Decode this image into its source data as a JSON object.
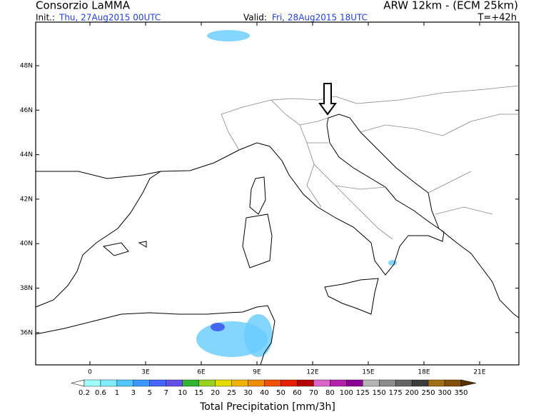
{
  "header": {
    "org": "Consorzio LaMMA",
    "model": "ARW 12km - (ECM 25km)",
    "init_label": "Init.:",
    "init_value": "Thu, 27Aug2015 00UTC",
    "valid_label": "Valid:",
    "valid_value": "Fri, 28Aug2015 18UTC",
    "lead_time": "T=+42h"
  },
  "map": {
    "lat_labels": [
      "48N",
      "46N",
      "44N",
      "42N",
      "40N",
      "38N",
      "36N"
    ],
    "lon_labels": [
      "0",
      "3E",
      "6E",
      "9E",
      "12E",
      "15E",
      "18E",
      "21E"
    ]
  },
  "colorbar": {
    "title": "Total Precipitation [mm/3h]",
    "labels": [
      "0.2",
      "0.6",
      "1",
      "3",
      "5",
      "7",
      "10",
      "15",
      "20",
      "25",
      "30",
      "40",
      "50",
      "60",
      "70",
      "80",
      "100",
      "125",
      "150",
      "175",
      "200",
      "250",
      "300",
      "350"
    ],
    "under_color": "#ffffff",
    "colors": [
      "#a0fffa",
      "#80ecff",
      "#50c8ff",
      "#3c96ff",
      "#4664ff",
      "#6450e6",
      "#32b432",
      "#96d21e",
      "#e6dc00",
      "#f0b400",
      "#f08c00",
      "#f05000",
      "#e61e00",
      "#b40000",
      "#dc64c8",
      "#b41eaa",
      "#8c0096",
      "#b4b4b4",
      "#8c8c8c",
      "#646464",
      "#3c3c3c",
      "#a06e14",
      "#82500a"
    ],
    "over_color": "#5a3200"
  }
}
